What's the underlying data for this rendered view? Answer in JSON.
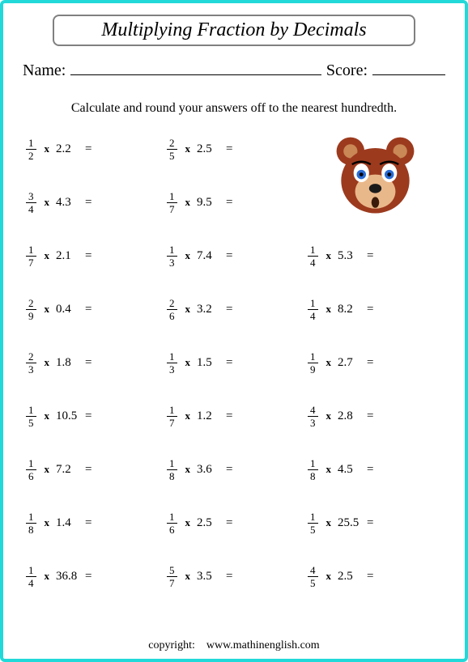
{
  "title": "Multiplying Fraction by Decimals",
  "name_label": "Name:",
  "score_label": "Score:",
  "instructions": "Calculate and round your answers off to the nearest hundredth.",
  "copyright_label": "copyright:",
  "copyright_site": "www.mathinenglish.com",
  "colors": {
    "border": "#22d9d9",
    "title_border": "#808080",
    "bear_fur": "#9c3a1e",
    "bear_face": "#e9b88a",
    "bear_eye_blue": "#2a6bd4",
    "bear_nose": "#1a1a1a",
    "bear_ear_inner": "#c98856"
  },
  "problems": [
    {
      "n": 1,
      "d": 2,
      "dec": "2.2"
    },
    {
      "n": 2,
      "d": 5,
      "dec": "2.5"
    },
    null,
    {
      "n": 3,
      "d": 4,
      "dec": "4.3"
    },
    {
      "n": 1,
      "d": 7,
      "dec": "9.5"
    },
    null,
    {
      "n": 1,
      "d": 7,
      "dec": "2.1"
    },
    {
      "n": 1,
      "d": 3,
      "dec": "7.4"
    },
    {
      "n": 1,
      "d": 4,
      "dec": "5.3"
    },
    {
      "n": 2,
      "d": 9,
      "dec": "0.4"
    },
    {
      "n": 2,
      "d": 6,
      "dec": "3.2"
    },
    {
      "n": 1,
      "d": 4,
      "dec": "8.2"
    },
    {
      "n": 2,
      "d": 3,
      "dec": "1.8"
    },
    {
      "n": 1,
      "d": 3,
      "dec": "1.5"
    },
    {
      "n": 1,
      "d": 9,
      "dec": "2.7"
    },
    {
      "n": 1,
      "d": 5,
      "dec": "10.5"
    },
    {
      "n": 1,
      "d": 7,
      "dec": "1.2"
    },
    {
      "n": 4,
      "d": 3,
      "dec": "2.8"
    },
    {
      "n": 1,
      "d": 6,
      "dec": "7.2"
    },
    {
      "n": 1,
      "d": 8,
      "dec": "3.6"
    },
    {
      "n": 1,
      "d": 8,
      "dec": "4.5"
    },
    {
      "n": 1,
      "d": 8,
      "dec": "1.4"
    },
    {
      "n": 1,
      "d": 6,
      "dec": "2.5"
    },
    {
      "n": 1,
      "d": 5,
      "dec": "25.5"
    },
    {
      "n": 1,
      "d": 4,
      "dec": "36.8"
    },
    {
      "n": 5,
      "d": 7,
      "dec": "3.5"
    },
    {
      "n": 4,
      "d": 5,
      "dec": "2.5"
    }
  ]
}
